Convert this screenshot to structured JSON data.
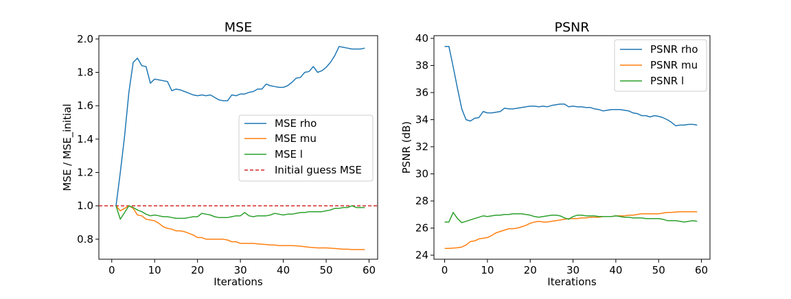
{
  "chart_data": [
    {
      "type": "line",
      "title": "MSE",
      "xlabel": "Iterations",
      "ylabel": "MSE / MSE_initial",
      "xlim": [
        -3,
        62
      ],
      "ylim": [
        0.68,
        2.02
      ],
      "xticks": [
        0,
        10,
        20,
        30,
        40,
        50,
        60
      ],
      "yticks": [
        0.8,
        1.0,
        1.2,
        1.4,
        1.6,
        1.8,
        2.0
      ],
      "grid": false,
      "legend_position": "center-right",
      "hline": {
        "name": "Initial guess MSE",
        "y": 1.0,
        "color": "#d62728",
        "style": "dashed"
      },
      "series": [
        {
          "name": "MSE rho",
          "color": "#1f77b4",
          "x": [
            1,
            2,
            3,
            4,
            5,
            6,
            7,
            8,
            9,
            10,
            11,
            12,
            13,
            14,
            15,
            16,
            17,
            18,
            19,
            20,
            21,
            22,
            23,
            24,
            25,
            26,
            27,
            28,
            29,
            30,
            31,
            32,
            33,
            34,
            35,
            36,
            37,
            38,
            39,
            40,
            41,
            42,
            43,
            44,
            45,
            46,
            47,
            48,
            49,
            50,
            51,
            52,
            53,
            54,
            55,
            56,
            57,
            58,
            59
          ],
          "values": [
            1.0,
            1.2,
            1.42,
            1.68,
            1.86,
            1.885,
            1.84,
            1.835,
            1.735,
            1.76,
            1.755,
            1.75,
            1.745,
            1.69,
            1.7,
            1.695,
            1.685,
            1.675,
            1.665,
            1.66,
            1.665,
            1.66,
            1.665,
            1.65,
            1.635,
            1.63,
            1.63,
            1.665,
            1.66,
            1.67,
            1.67,
            1.68,
            1.685,
            1.7,
            1.7,
            1.73,
            1.72,
            1.715,
            1.71,
            1.71,
            1.72,
            1.74,
            1.765,
            1.77,
            1.8,
            1.805,
            1.835,
            1.8,
            1.81,
            1.83,
            1.86,
            1.9,
            1.955,
            1.95,
            1.945,
            1.94,
            1.94,
            1.94,
            1.945
          ]
        },
        {
          "name": "MSE mu",
          "color": "#ff7f0e",
          "x": [
            1,
            2,
            3,
            4,
            5,
            6,
            7,
            8,
            9,
            10,
            11,
            12,
            13,
            14,
            15,
            16,
            17,
            18,
            19,
            20,
            21,
            22,
            23,
            24,
            25,
            26,
            27,
            28,
            29,
            30,
            31,
            32,
            33,
            34,
            35,
            36,
            37,
            38,
            39,
            40,
            41,
            42,
            43,
            44,
            45,
            46,
            47,
            48,
            49,
            50,
            51,
            52,
            53,
            54,
            55,
            56,
            57,
            58,
            59
          ],
          "values": [
            1.0,
            0.97,
            0.985,
            1.0,
            0.985,
            0.945,
            0.94,
            0.92,
            0.915,
            0.91,
            0.895,
            0.875,
            0.865,
            0.86,
            0.85,
            0.85,
            0.845,
            0.835,
            0.825,
            0.81,
            0.81,
            0.8,
            0.8,
            0.8,
            0.8,
            0.8,
            0.795,
            0.785,
            0.785,
            0.775,
            0.775,
            0.775,
            0.775,
            0.772,
            0.77,
            0.768,
            0.766,
            0.765,
            0.762,
            0.762,
            0.762,
            0.762,
            0.76,
            0.758,
            0.755,
            0.752,
            0.75,
            0.748,
            0.748,
            0.748,
            0.746,
            0.744,
            0.742,
            0.74,
            0.74,
            0.738,
            0.738,
            0.738,
            0.738
          ]
        },
        {
          "name": "MSE l",
          "color": "#2ca02c",
          "x": [
            1,
            2,
            3,
            4,
            5,
            6,
            7,
            8,
            9,
            10,
            11,
            12,
            13,
            14,
            15,
            16,
            17,
            18,
            19,
            20,
            21,
            22,
            23,
            24,
            25,
            26,
            27,
            28,
            29,
            30,
            31,
            32,
            33,
            34,
            35,
            36,
            37,
            38,
            39,
            40,
            41,
            42,
            43,
            44,
            45,
            46,
            47,
            48,
            49,
            50,
            51,
            52,
            53,
            54,
            55,
            56,
            57,
            58,
            59
          ],
          "values": [
            1.0,
            0.92,
            0.96,
            1.0,
            0.99,
            0.975,
            0.965,
            0.95,
            0.94,
            0.945,
            0.94,
            0.935,
            0.935,
            0.93,
            0.925,
            0.925,
            0.925,
            0.93,
            0.935,
            0.935,
            0.955,
            0.95,
            0.945,
            0.935,
            0.93,
            0.93,
            0.93,
            0.935,
            0.94,
            0.94,
            0.96,
            0.94,
            0.935,
            0.94,
            0.94,
            0.94,
            0.945,
            0.955,
            0.95,
            0.945,
            0.95,
            0.95,
            0.955,
            0.96,
            0.96,
            0.965,
            0.965,
            0.965,
            0.965,
            0.97,
            0.975,
            0.985,
            0.985,
            0.99,
            0.99,
            1.0,
            0.99,
            0.99,
            0.99
          ]
        }
      ]
    },
    {
      "type": "line",
      "title": "PSNR",
      "xlabel": "Iterations",
      "ylabel": "PSNR (dB)",
      "xlim": [
        -2.5,
        62
      ],
      "ylim": [
        23.7,
        40.2
      ],
      "xticks": [
        0,
        10,
        20,
        30,
        40,
        50,
        60
      ],
      "yticks": [
        24,
        26,
        28,
        30,
        32,
        34,
        36,
        38,
        40
      ],
      "grid": false,
      "legend_position": "upper-right",
      "series": [
        {
          "name": "PSNR rho",
          "color": "#1f77b4",
          "x": [
            0,
            1,
            2,
            3,
            4,
            5,
            6,
            7,
            8,
            9,
            10,
            11,
            12,
            13,
            14,
            15,
            16,
            17,
            18,
            19,
            20,
            21,
            22,
            23,
            24,
            25,
            26,
            27,
            28,
            29,
            30,
            31,
            32,
            33,
            34,
            35,
            36,
            37,
            38,
            39,
            40,
            41,
            42,
            43,
            44,
            45,
            46,
            47,
            48,
            49,
            50,
            51,
            52,
            53,
            54,
            55,
            56,
            57,
            58,
            59
          ],
          "values": [
            39.4,
            39.4,
            37.9,
            36.3,
            34.8,
            34.0,
            33.9,
            34.1,
            34.15,
            34.6,
            34.5,
            34.5,
            34.55,
            34.6,
            34.85,
            34.8,
            34.8,
            34.85,
            34.9,
            34.95,
            35.0,
            35.0,
            34.95,
            35.0,
            34.95,
            35.05,
            35.1,
            35.15,
            35.15,
            34.95,
            35.0,
            34.95,
            34.95,
            34.9,
            34.9,
            34.8,
            34.75,
            34.65,
            34.7,
            34.75,
            34.75,
            34.75,
            34.7,
            34.65,
            34.5,
            34.45,
            34.3,
            34.3,
            34.2,
            34.3,
            34.25,
            34.15,
            34.0,
            33.8,
            33.55,
            33.6,
            33.6,
            33.65,
            33.65,
            33.6
          ]
        },
        {
          "name": "PSNR mu",
          "color": "#ff7f0e",
          "x": [
            0,
            1,
            2,
            3,
            4,
            5,
            6,
            7,
            8,
            9,
            10,
            11,
            12,
            13,
            14,
            15,
            16,
            17,
            18,
            19,
            20,
            21,
            22,
            23,
            24,
            25,
            26,
            27,
            28,
            29,
            30,
            31,
            32,
            33,
            34,
            35,
            36,
            37,
            38,
            39,
            40,
            41,
            42,
            43,
            44,
            45,
            46,
            47,
            48,
            49,
            50,
            51,
            52,
            53,
            54,
            55,
            56,
            57,
            58,
            59
          ],
          "values": [
            24.5,
            24.5,
            24.52,
            24.55,
            24.6,
            24.75,
            25.0,
            25.05,
            25.2,
            25.25,
            25.3,
            25.45,
            25.65,
            25.75,
            25.85,
            25.95,
            25.95,
            26.0,
            26.1,
            26.2,
            26.35,
            26.45,
            26.5,
            26.45,
            26.45,
            26.5,
            26.55,
            26.6,
            26.65,
            26.7,
            26.7,
            26.7,
            26.75,
            26.75,
            26.8,
            26.8,
            26.8,
            26.85,
            26.85,
            26.85,
            26.9,
            26.9,
            26.9,
            26.95,
            26.95,
            27.0,
            27.05,
            27.05,
            27.05,
            27.05,
            27.05,
            27.1,
            27.15,
            27.15,
            27.18,
            27.2,
            27.2,
            27.2,
            27.2,
            27.2
          ]
        },
        {
          "name": "PSNR l",
          "color": "#2ca02c",
          "x": [
            0,
            1,
            2,
            3,
            4,
            5,
            6,
            7,
            8,
            9,
            10,
            11,
            12,
            13,
            14,
            15,
            16,
            17,
            18,
            19,
            20,
            21,
            22,
            23,
            24,
            25,
            26,
            27,
            28,
            29,
            30,
            31,
            32,
            33,
            34,
            35,
            36,
            37,
            38,
            39,
            40,
            41,
            42,
            43,
            44,
            45,
            46,
            47,
            48,
            49,
            50,
            51,
            52,
            53,
            54,
            55,
            56,
            57,
            58,
            59
          ],
          "values": [
            26.45,
            26.45,
            27.15,
            26.7,
            26.4,
            26.5,
            26.6,
            26.7,
            26.8,
            26.9,
            26.85,
            26.9,
            26.95,
            26.95,
            27.0,
            27.0,
            27.05,
            27.05,
            27.05,
            27.0,
            26.95,
            26.85,
            26.8,
            26.85,
            26.9,
            26.95,
            26.95,
            26.9,
            26.75,
            26.65,
            26.85,
            26.95,
            26.95,
            26.9,
            26.9,
            26.9,
            26.85,
            26.85,
            26.85,
            26.85,
            26.9,
            26.85,
            26.8,
            26.8,
            26.75,
            26.75,
            26.75,
            26.7,
            26.7,
            26.7,
            26.7,
            26.65,
            26.55,
            26.55,
            26.55,
            26.5,
            26.45,
            26.5,
            26.55,
            26.5
          ]
        }
      ]
    }
  ]
}
